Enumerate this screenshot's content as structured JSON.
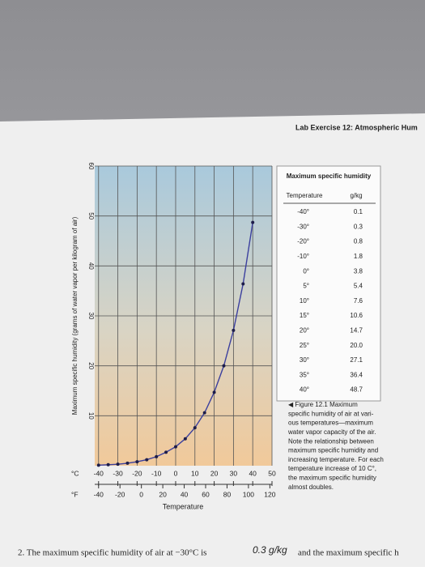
{
  "header": "Lab Exercise 12: Atmospheric Hum",
  "chart_data": {
    "type": "line",
    "ylabel": "Maximum specific humidity (grams of water vapor per kilogram of air)",
    "xlabel": "Temperature",
    "x_unit": "°C",
    "x2_unit": "°F",
    "x": [
      -40,
      -35,
      -30,
      -25,
      -20,
      -15,
      -10,
      -5,
      0,
      5,
      10,
      15,
      20,
      25,
      30,
      35,
      40
    ],
    "values": [
      0.1,
      0.2,
      0.3,
      0.5,
      0.8,
      1.2,
      1.8,
      2.7,
      3.8,
      5.4,
      7.6,
      10.6,
      14.7,
      20.0,
      27.1,
      36.4,
      48.7
    ],
    "color": "#3b3f9e",
    "xlim": [
      -42,
      50
    ],
    "xticks": [
      -40,
      -30,
      -20,
      -10,
      0,
      10,
      20,
      30,
      40,
      50
    ],
    "x2lim": [
      -43.6,
      122
    ],
    "x2ticks": [
      -40,
      -20,
      0,
      20,
      40,
      60,
      80,
      100,
      120
    ],
    "ylim": [
      0,
      60
    ],
    "yticks": [
      10,
      20,
      30,
      40,
      50,
      60
    ],
    "grid": true
  },
  "table": {
    "title": "Maximum specific humidity",
    "columns": [
      "Temperature",
      "g/kg"
    ],
    "rows": [
      [
        "-40°",
        "0.1"
      ],
      [
        "-30°",
        "0.3"
      ],
      [
        "-20°",
        "0.8"
      ],
      [
        "-10°",
        "1.8"
      ],
      [
        "0°",
        "3.8"
      ],
      [
        "5°",
        "5.4"
      ],
      [
        "10°",
        "7.6"
      ],
      [
        "15°",
        "10.6"
      ],
      [
        "20°",
        "14.7"
      ],
      [
        "25°",
        "20.0"
      ],
      [
        "30°",
        "27.1"
      ],
      [
        "35°",
        "36.4"
      ],
      [
        "40°",
        "48.7"
      ]
    ]
  },
  "caption": [
    "◀ Figure 12.1 Maximum",
    "specific humidity of air at vari-",
    "ous temperatures—maximum",
    "water vapor capacity of the air.",
    "Note the relationship between",
    "maximum specific humidity and",
    "increasing temperature. For each",
    "temperature increase of 10 C°,",
    "the maximum specific humidity",
    "almost doubles."
  ],
  "question": {
    "text": "2. The maximum specific humidity of air at −30°C is",
    "answer": "0.3 g/kg",
    "rest": "and the maximum specific h"
  }
}
